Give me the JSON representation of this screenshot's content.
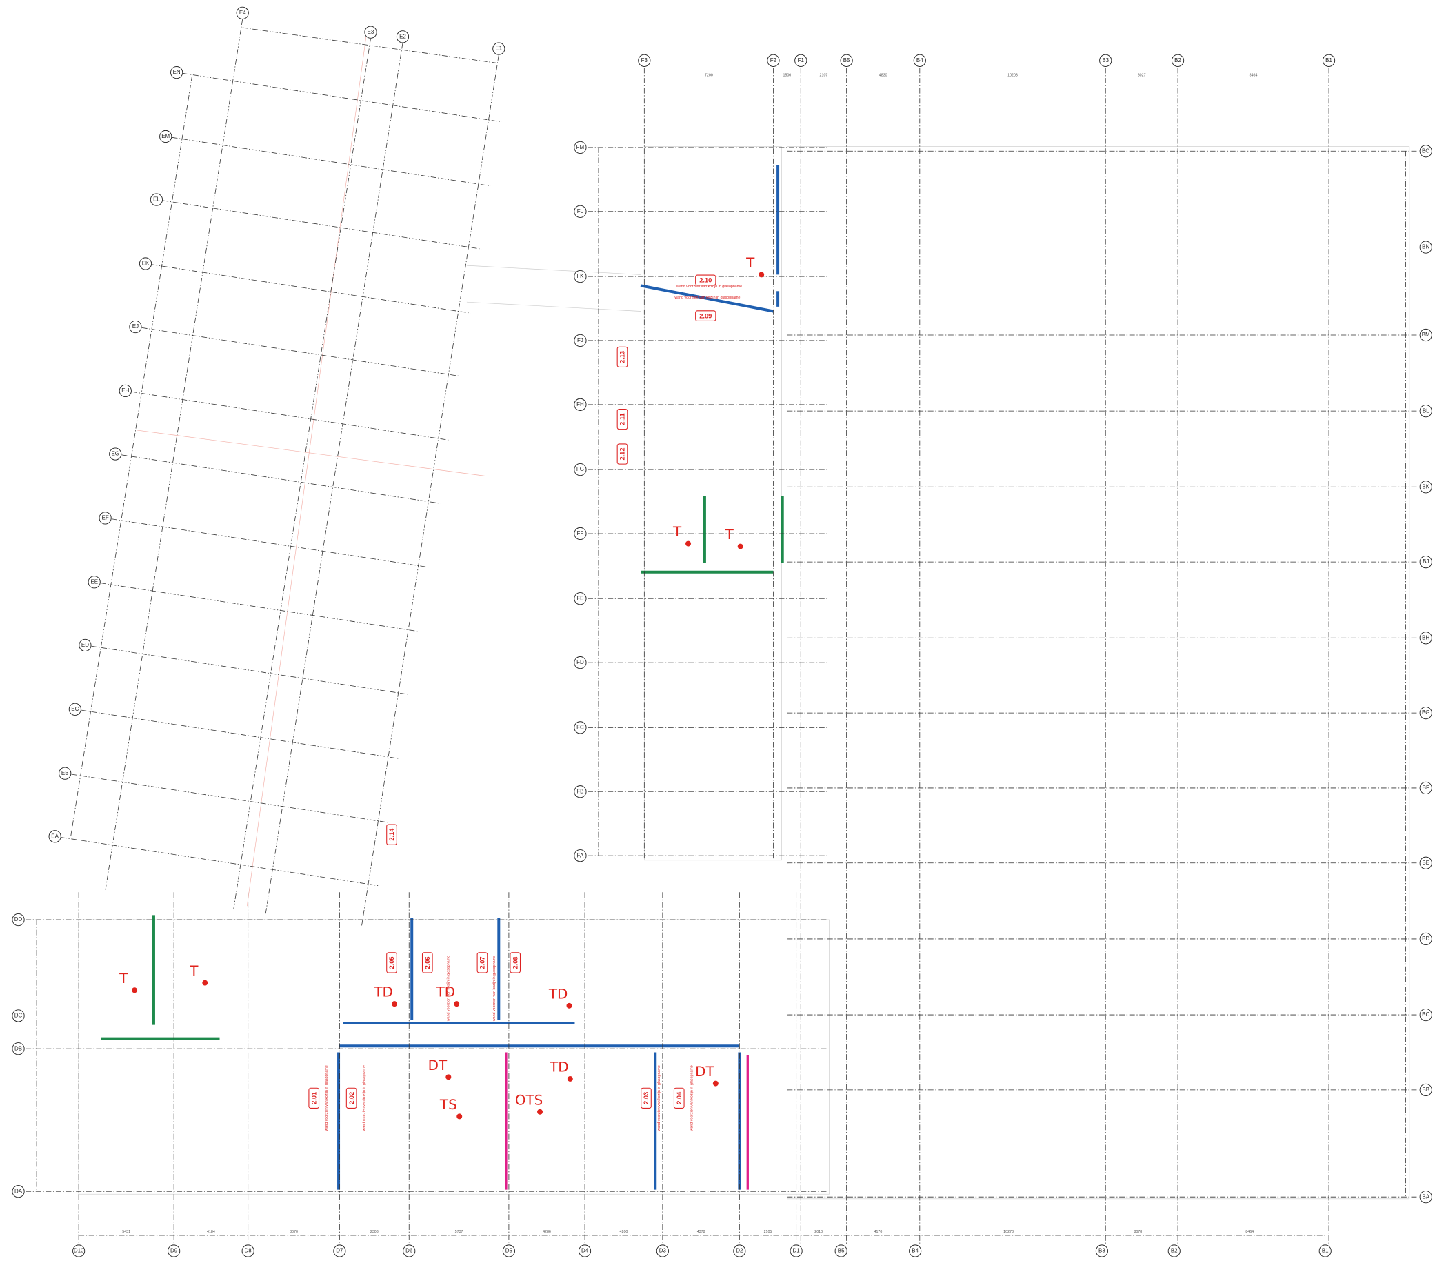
{
  "grid_block_a": {
    "columns": [
      "E4",
      "E3",
      "E2",
      "E1"
    ],
    "rows": [
      "EN",
      "EM",
      "EL",
      "EK",
      "EJ",
      "EH",
      "EG",
      "EF",
      "EE",
      "ED",
      "EC",
      "EB",
      "EA"
    ]
  },
  "grid_block_b": {
    "columns": [
      "F3",
      "F2",
      "F1",
      "B5",
      "B4",
      "B3",
      "B2",
      "B1"
    ],
    "rows_left": [
      "FM",
      "FL",
      "FK",
      "FJ",
      "FH",
      "FG",
      "FF",
      "FE",
      "FD",
      "FC",
      "FB",
      "FA"
    ],
    "rows_right": [
      "BO",
      "BN",
      "BM",
      "BL",
      "BK",
      "BJ",
      "BH",
      "BG",
      "BF",
      "BE",
      "BD",
      "BC",
      "BB",
      "BA"
    ]
  },
  "grid_block_c": {
    "rows": [
      "DD",
      "DC",
      "DB",
      "DA"
    ],
    "columns": [
      "D10",
      "D9",
      "D8",
      "D7",
      "D6",
      "D5",
      "D4",
      "D3",
      "D2",
      "D1",
      "B5",
      "B4",
      "B3",
      "B2",
      "B1"
    ]
  },
  "dimensions_top": [
    "7200",
    "1500",
    "2107",
    "4830",
    "10203",
    "8027",
    "8464"
  ],
  "dimensions_bottom": [
    "5431",
    "4184",
    "3070",
    "2303",
    "5737",
    "4286",
    "4200",
    "4378",
    "2105",
    "2010",
    "4170",
    "10273",
    "8078",
    "8464"
  ],
  "rooms": [
    "2.01",
    "2.02",
    "2.03",
    "2.04",
    "2.05",
    "2.06",
    "2.07",
    "2.08",
    "2.09",
    "2.10",
    "2.11",
    "2.12",
    "2.13",
    "2.14"
  ],
  "notes": [
    "wand voorzien van kozijn in glasopname"
  ],
  "markups": [
    "T",
    "T",
    "TD",
    "TD",
    "TD",
    "DT",
    "TD",
    "DT",
    "TS",
    "OTS",
    "T",
    "T",
    "T"
  ]
}
